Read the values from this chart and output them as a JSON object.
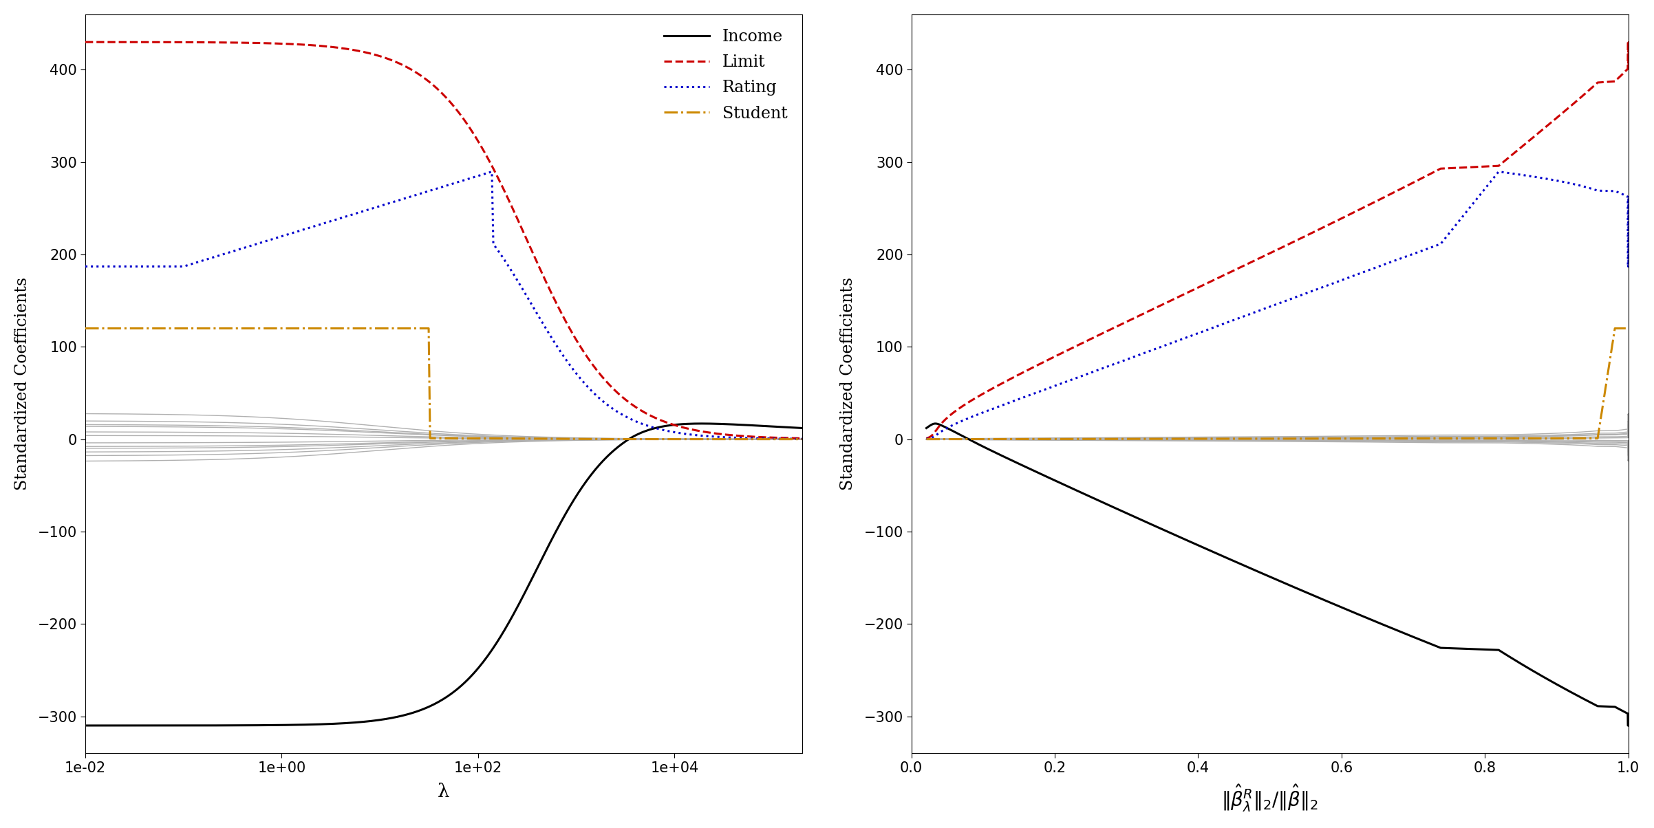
{
  "ylabel": "Standardized Coefficients",
  "xlabel_left": "λ",
  "ylim": [
    -340,
    460
  ],
  "yticks": [
    -300,
    -200,
    -100,
    0,
    100,
    200,
    300,
    400
  ],
  "line_styles": {
    "Income": {
      "color": "#000000",
      "ls": "-",
      "lw": 2.2
    },
    "Limit": {
      "color": "#cc0000",
      "ls": "--",
      "lw": 2.2
    },
    "Rating": {
      "color": "#0000cc",
      "ls": ":",
      "lw": 2.2
    },
    "Student": {
      "color": "#cc8800",
      "ls": "-.",
      "lw": 2.2
    },
    "gray": {
      "color": "#b0b0b0",
      "ls": "-",
      "lw": 1.0
    }
  },
  "background_color": "#ffffff",
  "gray_starts": [
    28,
    20,
    14,
    8,
    -4,
    -10,
    -18,
    -24,
    -8,
    4,
    16,
    -14
  ],
  "ols_income": -310,
  "ols_limit": 430,
  "ols_rating": 190,
  "ols_student": 120
}
